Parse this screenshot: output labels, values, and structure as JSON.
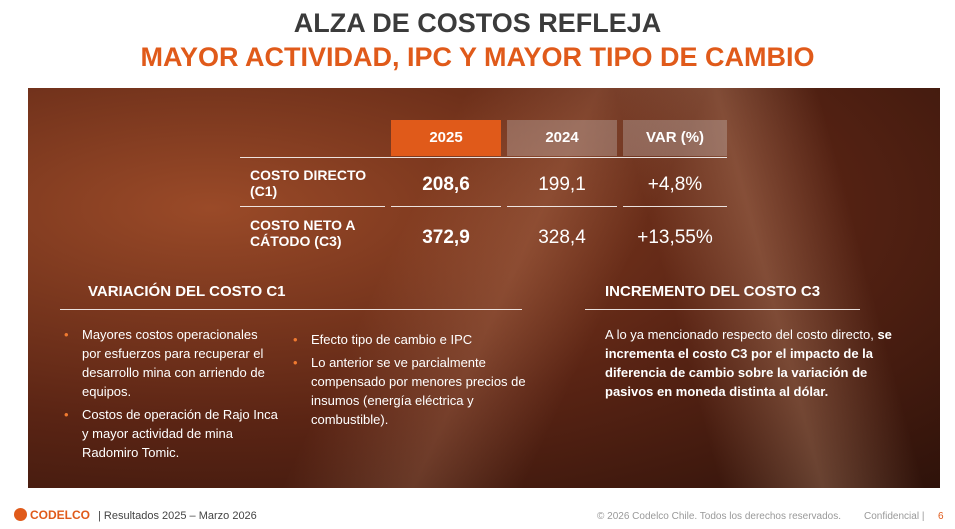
{
  "title": {
    "line1": "ALZA DE COSTOS REFLEJA",
    "line2": "MAYOR ACTIVIDAD, IPC Y MAYOR TIPO DE CAMBIO"
  },
  "table": {
    "headers": [
      "2025",
      "2024",
      "VAR (%)"
    ],
    "rows": [
      [
        "COSTO DIRECTO (C1)",
        "208,6",
        "199,1",
        "+4,8%"
      ],
      [
        "COSTO NETO A CÁTODO (C3)",
        "372,9",
        "328,4",
        "+13,55%"
      ]
    ]
  },
  "c1": {
    "heading": "VARIACIÓN DEL COSTO C1",
    "left_bullets": [
      "Mayores costos operacionales por esfuerzos para recuperar el desarrollo mina con arriendo de equipos.",
      "Costos de operación de Rajo Inca y mayor actividad de mina Radomiro Tomic."
    ],
    "right_bullets": [
      "Efecto tipo de cambio e IPC",
      "Lo anterior se ve parcialmente compensado por menores precios de insumos (energía eléctrica y combustible)."
    ]
  },
  "c3": {
    "heading": "INCREMENTO DEL COSTO C3",
    "text_plain": "A lo ya mencionado respecto del costo directo, ",
    "text_bold": "se incrementa el costo C3 por el impacto de la diferencia de cambio sobre la variación de pasivos en moneda distinta al dólar."
  },
  "footer": {
    "brand": "CODELCO",
    "report": "| Resultados 2025 – Marzo 2026",
    "copyright": "© 2026 Codelco Chile. Todos los derechos reservados.",
    "confidential": "Confidencial |",
    "page": "6"
  }
}
